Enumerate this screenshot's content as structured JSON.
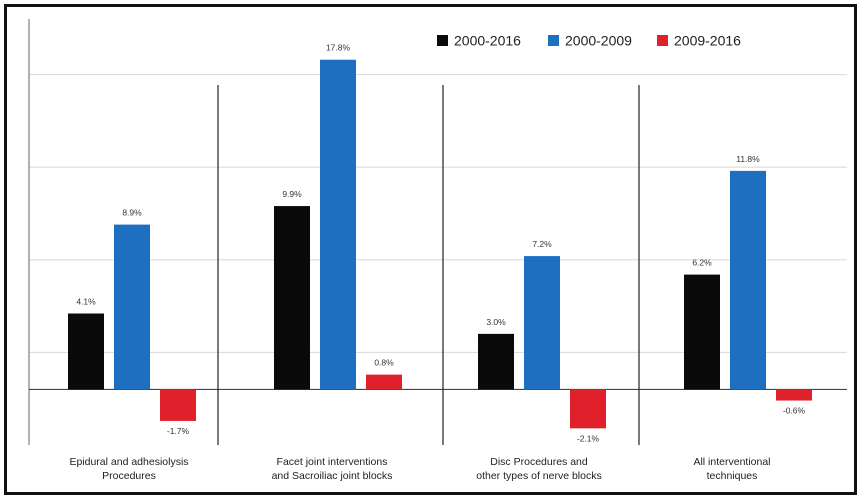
{
  "chart_data": {
    "type": "bar",
    "categories": [
      "Epidural and adhesiolysis Procedures",
      "Facet joint interventions and Sacroiliac joint blocks",
      "Disc Procedures and other types of nerve blocks",
      "All interventional techniques"
    ],
    "category_lines": [
      [
        "Epidural and adhesiolysis",
        "Procedures"
      ],
      [
        "Facet joint interventions",
        "and Sacroiliac joint blocks"
      ],
      [
        "Disc Procedures and",
        "other types of nerve blocks"
      ],
      [
        "All interventional",
        "techniques"
      ]
    ],
    "series": [
      {
        "name": "2000-2016",
        "color": "#0a0a0a",
        "values": [
          4.1,
          9.9,
          3.0,
          6.2
        ],
        "labels": [
          "4.1%",
          "9.9%",
          "3.0%",
          "6.2%"
        ]
      },
      {
        "name": "2000-2009",
        "color": "#1f6fc1",
        "values": [
          8.9,
          17.8,
          7.2,
          11.8
        ],
        "labels": [
          "8.9%",
          "17.8%",
          "7.2%",
          "11.8%"
        ]
      },
      {
        "name": "2009-2016",
        "color": "#e0202a",
        "values": [
          -1.7,
          0.8,
          -2.1,
          -0.6
        ],
        "labels": [
          "-1.7%",
          "0.8%",
          "-2.1%",
          "-0.6%"
        ]
      }
    ],
    "ylim": [
      -3,
      20
    ],
    "gridlines": [
      2,
      7,
      12,
      17
    ],
    "grid": true,
    "legend": "top-right",
    "title": "",
    "xlabel": "",
    "ylabel": ""
  }
}
